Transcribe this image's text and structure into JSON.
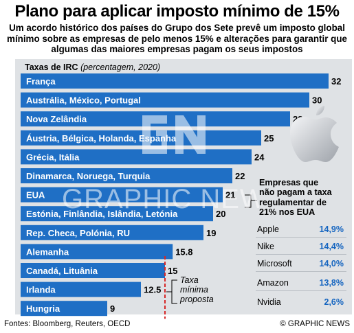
{
  "header": {
    "title": "Plano para aplicar imposto mínimo de 15%",
    "subtitle": "Um acordo histórico dos países do Grupo dos Sete prevê um imposto global mínimo sobre as empresas de pelo menos 15% e alterações para garantir que algumas das maiores empresas pagam os seus impostos"
  },
  "chart_label": {
    "main": "Taxas de IRC",
    "paren": "(percentagem, 2020)"
  },
  "chart_data": {
    "type": "bar",
    "orientation": "horizontal",
    "categories": [
      "França",
      "Austrália, México, Portugal",
      "Nova Zelândia",
      "Áustria, Bélgica, Holanda, Espanha",
      "Grécia, Itália",
      "Dinamarca, Noruega, Turquia",
      "EUA",
      "Estónia, Finlândia, Islândia, Letónia",
      "Rep. Checa, Polónia, RU",
      "Alemanha",
      "Canadá, Lituânia",
      "Irlanda",
      "Hungria"
    ],
    "values": [
      32,
      30,
      28,
      25,
      24,
      22,
      21,
      20,
      19,
      15.8,
      15,
      12.5,
      9
    ],
    "value_labels": [
      "32",
      "30",
      "28",
      "25",
      "24",
      "22",
      "21",
      "20",
      "19",
      "15.8",
      "15",
      "12.5",
      "9"
    ],
    "xlim": [
      0,
      32
    ],
    "bar_color": "#1f6fc5",
    "reference_line": {
      "value": 15,
      "label": [
        "Taxa",
        "mínima",
        "proposta"
      ],
      "color": "#d62828"
    }
  },
  "callout": {
    "title": [
      "Empresas que",
      "não pagam a taxa",
      "regulamentar de",
      "21% nos EUA"
    ],
    "companies": [
      {
        "name": "Apple",
        "rate": "14,9%"
      },
      {
        "name": "Nike",
        "rate": "14,4%"
      },
      {
        "name": "Microsoft",
        "rate": "14,0%"
      },
      {
        "name": "Amazon",
        "rate": "13,8%"
      },
      {
        "name": "Nvidia",
        "rate": "2,6%"
      }
    ],
    "accent_color": "#1565c0"
  },
  "watermark": {
    "text": "GRAPHIC NEWS"
  },
  "footer": {
    "sources": "Fontes:  Bloomberg, Reuters, OECD",
    "credit": "© GRAPHIC NEWS"
  }
}
